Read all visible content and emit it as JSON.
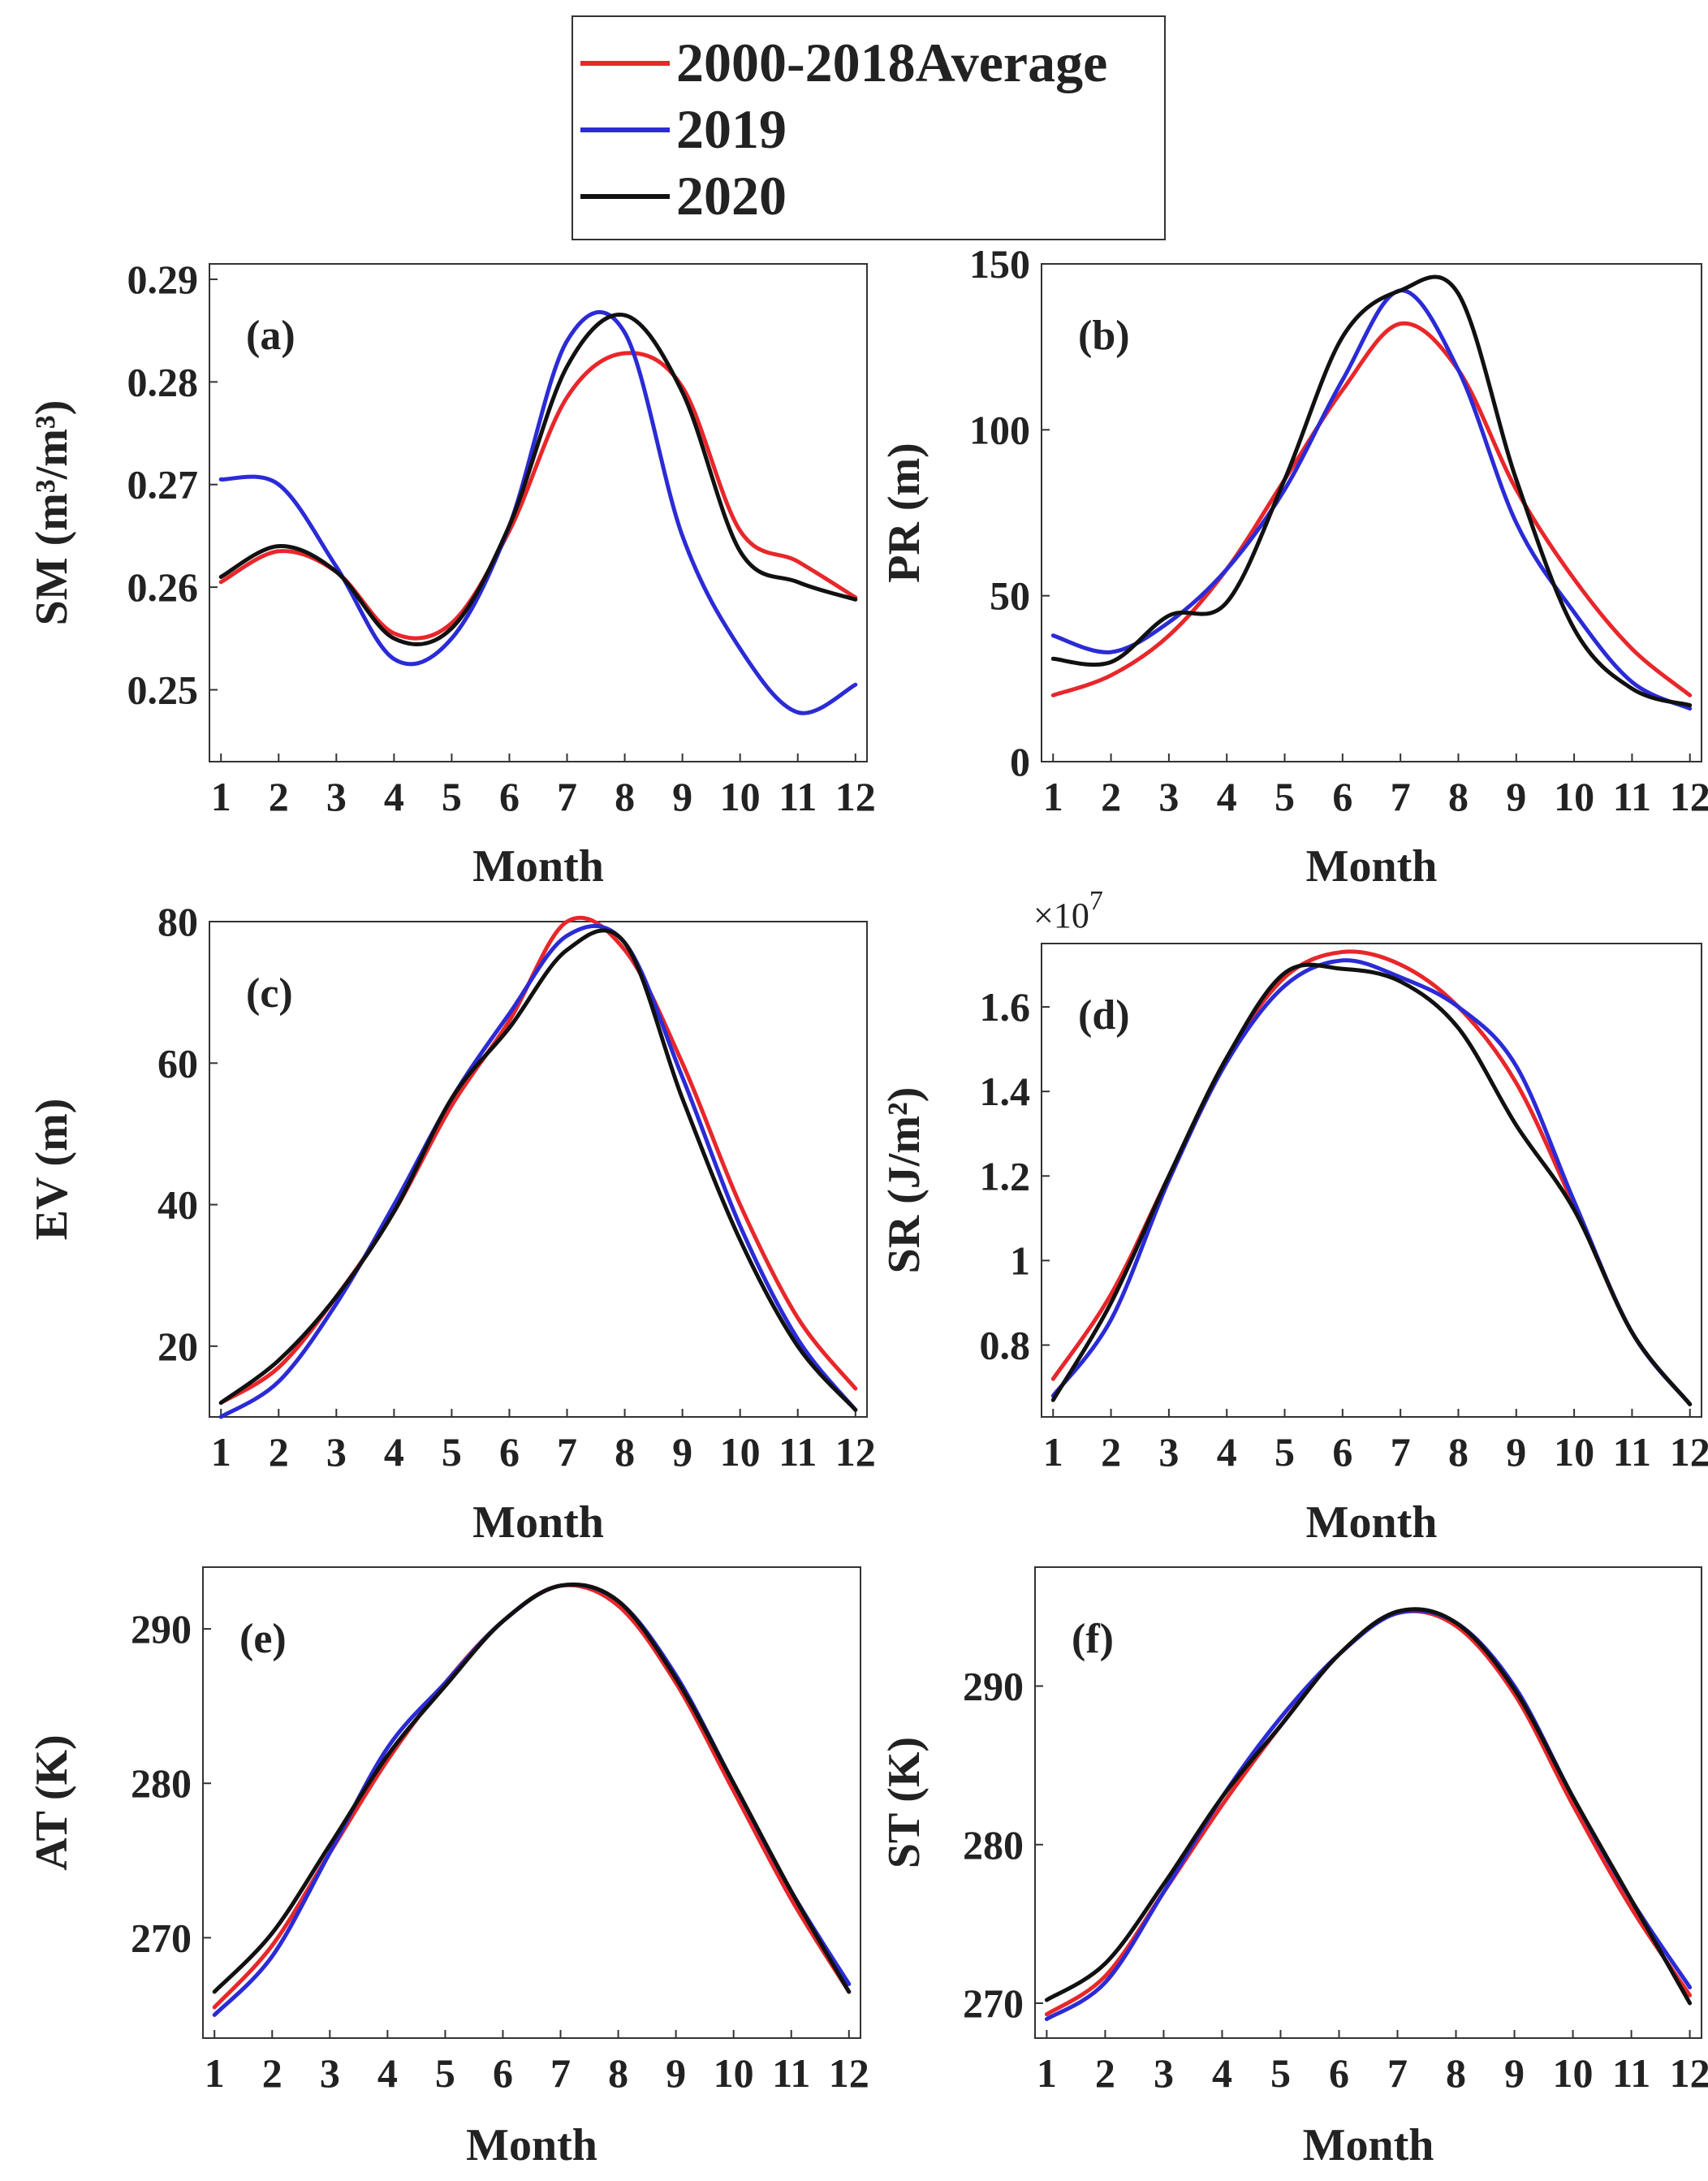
{
  "legend": {
    "entries": [
      {
        "label": "2000-2018Average",
        "color": "#e8272b"
      },
      {
        "label": "2019",
        "color": "#2b2bd6"
      },
      {
        "label": "2020",
        "color": "#111111"
      }
    ]
  },
  "chart_data": [
    {
      "id": "a",
      "type": "line",
      "panel_label": "(a)",
      "xlabel": "Month",
      "ylabel": "SM (m³/m³)",
      "xlim": [
        0.8,
        12.2
      ],
      "ylim": [
        0.243,
        0.2915
      ],
      "yticks": [
        0.25,
        0.26,
        0.27,
        0.28,
        0.29
      ],
      "ytick_labels": [
        "0.25",
        "0.26",
        "0.27",
        "0.28",
        "0.29"
      ],
      "x": [
        1,
        2,
        3,
        4,
        5,
        6,
        7,
        8,
        9,
        10,
        11,
        12
      ],
      "xtick_labels": [
        "1",
        "2",
        "3",
        "4",
        "5",
        "6",
        "7",
        "8",
        "9",
        "10",
        "11",
        "12"
      ],
      "series": [
        {
          "name": "2000-2018Average",
          "color": "#e8272b",
          "values": [
            0.2605,
            0.2635,
            0.2615,
            0.2555,
            0.2565,
            0.2655,
            0.2785,
            0.2828,
            0.2795,
            0.2655,
            0.2625,
            0.259
          ]
        },
        {
          "name": "2019",
          "color": "#2b2bd6",
          "values": [
            0.2705,
            0.27,
            0.262,
            0.253,
            0.255,
            0.266,
            0.284,
            0.2848,
            0.265,
            0.254,
            0.2478,
            0.2505
          ]
        },
        {
          "name": "2020",
          "color": "#111111",
          "values": [
            0.261,
            0.264,
            0.2615,
            0.255,
            0.256,
            0.266,
            0.2815,
            0.2865,
            0.279,
            0.2635,
            0.2605,
            0.2588
          ]
        }
      ]
    },
    {
      "id": "b",
      "type": "line",
      "panel_label": "(b)",
      "xlabel": "Month",
      "ylabel": "PR (m)",
      "xlim": [
        0.8,
        12.2
      ],
      "ylim": [
        0,
        150
      ],
      "yticks": [
        0,
        50,
        100,
        150
      ],
      "ytick_labels": [
        "0",
        "50",
        "100",
        "150"
      ],
      "x": [
        1,
        2,
        3,
        4,
        5,
        6,
        7,
        8,
        9,
        10,
        11,
        12
      ],
      "xtick_labels": [
        "1",
        "2",
        "3",
        "4",
        "5",
        "6",
        "7",
        "8",
        "9",
        "10",
        "11",
        "12"
      ],
      "series": [
        {
          "name": "2000-2018Average",
          "color": "#e8272b",
          "values": [
            20,
            26,
            38,
            58,
            85,
            112,
            132,
            118,
            82,
            55,
            34,
            20
          ]
        },
        {
          "name": "2019",
          "color": "#2b2bd6",
          "values": [
            38,
            33,
            42,
            58,
            82,
            115,
            142,
            118,
            72,
            45,
            24,
            16
          ]
        },
        {
          "name": "2020",
          "color": "#111111",
          "values": [
            31,
            30,
            44,
            48,
            85,
            128,
            142,
            141,
            85,
            40,
            22,
            17
          ]
        }
      ]
    },
    {
      "id": "c",
      "type": "line",
      "panel_label": "(c)",
      "xlabel": "Month",
      "ylabel": "EV (m)",
      "xlim": [
        0.8,
        12.2
      ],
      "ylim": [
        10,
        80
      ],
      "yticks": [
        20,
        40,
        60,
        80
      ],
      "ytick_labels": [
        "20",
        "40",
        "60",
        "80"
      ],
      "x": [
        1,
        2,
        3,
        4,
        5,
        6,
        7,
        8,
        9,
        10,
        11,
        12
      ],
      "xtick_labels": [
        "1",
        "2",
        "3",
        "4",
        "5",
        "6",
        "7",
        "8",
        "9",
        "10",
        "11",
        "12"
      ],
      "series": [
        {
          "name": "2000-2018Average",
          "color": "#e8272b",
          "values": [
            12,
            17,
            27,
            39,
            54,
            66,
            80,
            76,
            60,
            40,
            24,
            14
          ]
        },
        {
          "name": "2019",
          "color": "#2b2bd6",
          "values": [
            10,
            15,
            26,
            40,
            55,
            67,
            78,
            77,
            58,
            37,
            21,
            11
          ]
        },
        {
          "name": "2020",
          "color": "#111111",
          "values": [
            12,
            18,
            27,
            39,
            55,
            65,
            76,
            77,
            55,
            35,
            20,
            11
          ]
        }
      ]
    },
    {
      "id": "d",
      "type": "line",
      "panel_label": "(d)",
      "xlabel": "Month",
      "ylabel": "SR  (J/m²)",
      "y_multiplier": "×10",
      "y_multiplier_exp": "7",
      "xlim": [
        0.8,
        12.2
      ],
      "ylim": [
        0.63,
        1.75
      ],
      "yticks": [
        0.8,
        1.0,
        1.2,
        1.4,
        1.6
      ],
      "ytick_labels": [
        "0.8",
        "1",
        "1.2",
        "1.4",
        "1.6"
      ],
      "x": [
        1,
        2,
        3,
        4,
        5,
        6,
        7,
        8,
        9,
        10,
        11,
        12
      ],
      "xtick_labels": [
        "1",
        "2",
        "3",
        "4",
        "5",
        "6",
        "7",
        "8",
        "9",
        "10",
        "11",
        "12"
      ],
      "series": [
        {
          "name": "2000-2018Average",
          "color": "#e8272b",
          "values": [
            0.72,
            0.92,
            1.2,
            1.48,
            1.67,
            1.73,
            1.7,
            1.6,
            1.42,
            1.13,
            0.83,
            0.66
          ]
        },
        {
          "name": "2019",
          "color": "#2b2bd6",
          "values": [
            0.68,
            0.86,
            1.19,
            1.47,
            1.65,
            1.71,
            1.67,
            1.6,
            1.46,
            1.14,
            0.83,
            0.66
          ]
        },
        {
          "name": "2020",
          "color": "#111111",
          "values": [
            0.67,
            0.9,
            1.2,
            1.48,
            1.68,
            1.69,
            1.66,
            1.55,
            1.32,
            1.12,
            0.83,
            0.66
          ]
        }
      ]
    },
    {
      "id": "e",
      "type": "line",
      "panel_label": "(e)",
      "xlabel": "Month",
      "ylabel": "AT (K)",
      "xlim": [
        0.8,
        12.2
      ],
      "ylim": [
        263.5,
        294
      ],
      "yticks": [
        270,
        280,
        290
      ],
      "ytick_labels": [
        "270",
        "280",
        "290"
      ],
      "x": [
        1,
        2,
        3,
        4,
        5,
        6,
        7,
        8,
        9,
        10,
        11,
        12
      ],
      "xtick_labels": [
        "1",
        "2",
        "3",
        "4",
        "5",
        "6",
        "7",
        "8",
        "9",
        "10",
        "11",
        "12"
      ],
      "series": [
        {
          "name": "2000-2018Average",
          "color": "#e8272b",
          "values": [
            265.5,
            269.5,
            275.5,
            281.5,
            286.5,
            290.5,
            292.8,
            291.5,
            286.5,
            279.5,
            272.5,
            266.5
          ]
        },
        {
          "name": "2019",
          "color": "#2b2bd6",
          "values": [
            265.0,
            268.8,
            275.5,
            282.3,
            286.5,
            290.5,
            292.8,
            291.8,
            287.0,
            280.0,
            273.0,
            267.0
          ]
        },
        {
          "name": "2020",
          "color": "#111111",
          "values": [
            266.5,
            270.3,
            276.0,
            281.8,
            286.3,
            290.5,
            292.8,
            291.8,
            286.8,
            280.0,
            273.0,
            266.5
          ]
        }
      ]
    },
    {
      "id": "f",
      "type": "line",
      "panel_label": "(f)",
      "xlabel": "Month",
      "ylabel": "ST (K)",
      "xlim": [
        0.8,
        12.2
      ],
      "ylim": [
        267.8,
        297.5
      ],
      "yticks": [
        270,
        280,
        290
      ],
      "ytick_labels": [
        "270",
        "280",
        "290"
      ],
      "x": [
        1,
        2,
        3,
        4,
        5,
        6,
        7,
        8,
        9,
        10,
        11,
        12
      ],
      "xtick_labels": [
        "1",
        "2",
        "3",
        "4",
        "5",
        "6",
        "7",
        "8",
        "9",
        "10",
        "11",
        "12"
      ],
      "series": [
        {
          "name": "2000-2018Average",
          "color": "#e8272b",
          "values": [
            269.3,
            271.7,
            277.0,
            282.5,
            287.5,
            292.0,
            294.6,
            293.8,
            289.5,
            282.5,
            276.0,
            270.5
          ]
        },
        {
          "name": "2019",
          "color": "#2b2bd6",
          "values": [
            269.0,
            271.3,
            277.0,
            283.0,
            288.0,
            292.0,
            294.6,
            294.0,
            290.0,
            283.0,
            276.5,
            271.0
          ]
        },
        {
          "name": "2020",
          "color": "#111111",
          "values": [
            270.2,
            272.5,
            277.5,
            283.0,
            287.5,
            292.0,
            294.7,
            294.0,
            289.8,
            283.0,
            276.5,
            270.0
          ]
        }
      ]
    }
  ]
}
